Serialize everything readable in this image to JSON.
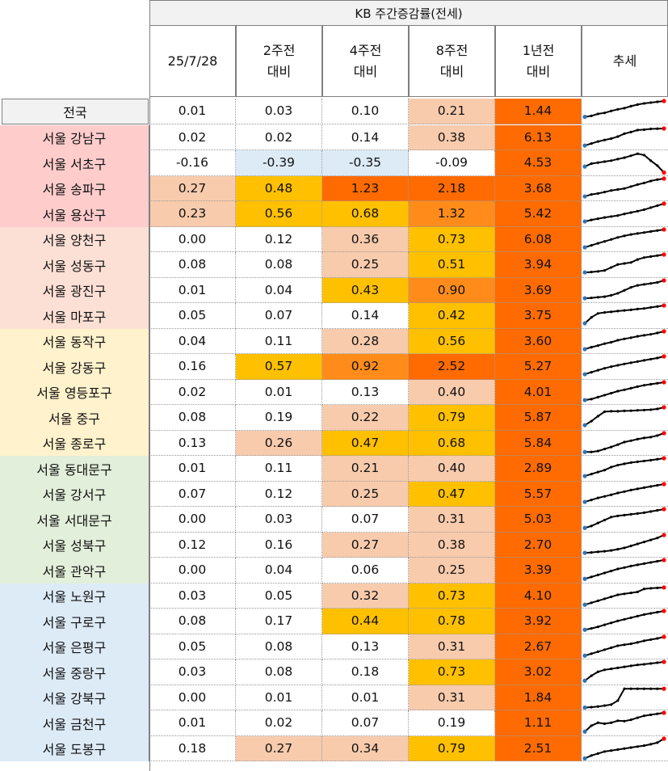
{
  "title": "KB 주간증감률(전세)",
  "headers": [
    {
      "l1": "25/7/28",
      "l2": ""
    },
    {
      "l1": "2주전",
      "l2": "대비"
    },
    {
      "l1": "4주전",
      "l2": "대비"
    },
    {
      "l1": "8주전",
      "l2": "대비"
    },
    {
      "l1": "1년전",
      "l2": "대비"
    },
    {
      "l1": "추세",
      "l2": ""
    }
  ],
  "colors": {
    "group_pink": "#ffcccc",
    "group_peach": "#fde0d5",
    "group_yellow": "#fff2cc",
    "group_green": "#e2efda",
    "group_blue": "#ddebf7",
    "national": "#f2f2f2",
    "negative": "#ddebf7",
    "light": "#f8cbad",
    "mid": "#ffc000",
    "strong": "#ff8c1a",
    "max": "#ff6b00",
    "white": "#ffffff",
    "line": "#000000",
    "start_marker": "#2e75b6",
    "end_marker": "#ff0000"
  },
  "rows": [
    {
      "name": "전국",
      "group": "national",
      "vals": [
        "0.01",
        "0.03",
        "0.10",
        "0.21",
        "1.44"
      ],
      "fills": [
        "white",
        "white",
        "white",
        "light",
        "max"
      ],
      "trend": [
        0.2,
        0.25,
        0.35,
        0.4,
        0.5,
        0.58,
        0.64,
        0.74,
        0.82,
        0.88,
        0.92,
        0.96,
        1.0
      ]
    },
    {
      "name": "서울 강남구",
      "group": "pink",
      "vals": [
        "0.02",
        "0.02",
        "0.14",
        "0.38",
        "6.13"
      ],
      "fills": [
        "white",
        "white",
        "white",
        "light",
        "max"
      ],
      "trend": [
        0.1,
        0.2,
        0.3,
        0.38,
        0.45,
        0.55,
        0.7,
        0.78,
        0.88,
        0.9,
        0.94,
        0.95,
        0.96
      ]
    },
    {
      "name": "서울 서초구",
      "group": "pink",
      "vals": [
        "-0.16",
        "-0.39",
        "-0.35",
        "-0.09",
        "4.53"
      ],
      "fills": [
        "white",
        "negative",
        "negative",
        "white",
        "max"
      ],
      "trend": [
        0.3,
        0.45,
        0.5,
        0.55,
        0.6,
        0.68,
        0.75,
        0.85,
        0.95,
        0.88,
        0.6,
        0.35,
        0.0
      ]
    },
    {
      "name": "서울 송파구",
      "group": "pink",
      "vals": [
        "0.27",
        "0.48",
        "1.23",
        "2.18",
        "3.68"
      ],
      "fills": [
        "light",
        "mid",
        "max",
        "max",
        "max"
      ],
      "trend": [
        0.1,
        0.2,
        0.25,
        0.32,
        0.4,
        0.45,
        0.5,
        0.6,
        0.7,
        0.78,
        0.88,
        0.95,
        1.0
      ]
    },
    {
      "name": "서울 용산구",
      "group": "pink",
      "vals": [
        "0.23",
        "0.56",
        "0.68",
        "1.32",
        "5.42"
      ],
      "fills": [
        "light",
        "mid",
        "mid",
        "strong",
        "max"
      ],
      "trend": [
        0.1,
        0.18,
        0.24,
        0.3,
        0.35,
        0.4,
        0.48,
        0.55,
        0.62,
        0.7,
        0.8,
        0.9,
        1.0
      ]
    },
    {
      "name": "서울 양천구",
      "group": "peach",
      "vals": [
        "0.00",
        "0.12",
        "0.36",
        "0.73",
        "6.08"
      ],
      "fills": [
        "white",
        "white",
        "light",
        "mid",
        "max"
      ],
      "trend": [
        0.1,
        0.2,
        0.3,
        0.4,
        0.5,
        0.6,
        0.68,
        0.75,
        0.8,
        0.85,
        0.9,
        0.95,
        1.0
      ]
    },
    {
      "name": "서울 성동구",
      "group": "peach",
      "vals": [
        "0.08",
        "0.08",
        "0.25",
        "0.51",
        "3.94"
      ],
      "fills": [
        "white",
        "white",
        "light",
        "mid",
        "max"
      ],
      "trend": [
        0.1,
        0.12,
        0.15,
        0.2,
        0.35,
        0.5,
        0.55,
        0.6,
        0.75,
        0.85,
        0.9,
        0.95,
        1.0
      ]
    },
    {
      "name": "서울 광진구",
      "group": "peach",
      "vals": [
        "0.01",
        "0.04",
        "0.43",
        "0.90",
        "3.69"
      ],
      "fills": [
        "white",
        "white",
        "mid",
        "strong",
        "max"
      ],
      "trend": [
        0.1,
        0.12,
        0.15,
        0.18,
        0.25,
        0.35,
        0.5,
        0.65,
        0.75,
        0.8,
        0.85,
        0.9,
        1.0
      ]
    },
    {
      "name": "서울 마포구",
      "group": "peach",
      "vals": [
        "0.05",
        "0.07",
        "0.14",
        "0.42",
        "3.75"
      ],
      "fills": [
        "white",
        "white",
        "white",
        "mid",
        "max"
      ],
      "trend": [
        0.1,
        0.4,
        0.6,
        0.65,
        0.68,
        0.72,
        0.75,
        0.78,
        0.82,
        0.85,
        0.9,
        0.95,
        1.0
      ]
    },
    {
      "name": "서울 동작구",
      "group": "yellow",
      "vals": [
        "0.04",
        "0.11",
        "0.28",
        "0.56",
        "3.60"
      ],
      "fills": [
        "white",
        "white",
        "light",
        "mid",
        "max"
      ],
      "trend": [
        0.1,
        0.2,
        0.28,
        0.38,
        0.45,
        0.55,
        0.62,
        0.68,
        0.75,
        0.8,
        0.85,
        0.92,
        1.0
      ]
    },
    {
      "name": "서울 강동구",
      "group": "yellow",
      "vals": [
        "0.16",
        "0.57",
        "0.92",
        "2.52",
        "5.27"
      ],
      "fills": [
        "white",
        "mid",
        "strong",
        "max",
        "max"
      ],
      "trend": [
        0.1,
        0.2,
        0.3,
        0.4,
        0.48,
        0.55,
        0.62,
        0.68,
        0.74,
        0.8,
        0.86,
        0.92,
        1.0
      ]
    },
    {
      "name": "서울 영등포구",
      "group": "yellow",
      "vals": [
        "0.02",
        "0.01",
        "0.13",
        "0.40",
        "4.01"
      ],
      "fills": [
        "white",
        "white",
        "white",
        "light",
        "max"
      ],
      "trend": [
        0.1,
        0.15,
        0.25,
        0.35,
        0.45,
        0.55,
        0.62,
        0.7,
        0.78,
        0.85,
        0.9,
        0.95,
        1.0
      ]
    },
    {
      "name": "서울 중구",
      "group": "yellow",
      "vals": [
        "0.08",
        "0.19",
        "0.22",
        "0.79",
        "5.87"
      ],
      "fills": [
        "white",
        "white",
        "light",
        "mid",
        "max"
      ],
      "trend": [
        0.1,
        0.3,
        0.55,
        0.78,
        0.8,
        0.8,
        0.82,
        0.83,
        0.85,
        0.86,
        0.88,
        0.92,
        1.0
      ]
    },
    {
      "name": "서울 종로구",
      "group": "yellow",
      "vals": [
        "0.13",
        "0.26",
        "0.47",
        "0.68",
        "5.84"
      ],
      "fills": [
        "white",
        "light",
        "mid",
        "mid",
        "max"
      ],
      "trend": [
        0.05,
        0.05,
        0.1,
        0.2,
        0.3,
        0.42,
        0.55,
        0.62,
        0.7,
        0.76,
        0.8,
        0.88,
        1.0
      ]
    },
    {
      "name": "서울 동대문구",
      "group": "green",
      "vals": [
        "0.01",
        "0.11",
        "0.21",
        "0.40",
        "2.89"
      ],
      "fills": [
        "white",
        "white",
        "light",
        "light",
        "max"
      ],
      "trend": [
        0.1,
        0.2,
        0.3,
        0.4,
        0.55,
        0.65,
        0.72,
        0.78,
        0.82,
        0.86,
        0.9,
        0.95,
        1.0
      ]
    },
    {
      "name": "서울 강서구",
      "group": "green",
      "vals": [
        "0.07",
        "0.12",
        "0.25",
        "0.47",
        "5.57"
      ],
      "fills": [
        "white",
        "white",
        "light",
        "mid",
        "max"
      ],
      "trend": [
        0.1,
        0.2,
        0.3,
        0.38,
        0.46,
        0.55,
        0.62,
        0.7,
        0.76,
        0.82,
        0.88,
        0.94,
        1.0
      ]
    },
    {
      "name": "서울 서대문구",
      "group": "green",
      "vals": [
        "0.00",
        "0.03",
        "0.07",
        "0.31",
        "5.03"
      ],
      "fills": [
        "white",
        "white",
        "white",
        "light",
        "max"
      ],
      "trend": [
        0.05,
        0.15,
        0.3,
        0.45,
        0.6,
        0.66,
        0.7,
        0.74,
        0.78,
        0.82,
        0.88,
        0.94,
        1.0
      ]
    },
    {
      "name": "서울 성북구",
      "group": "green",
      "vals": [
        "0.12",
        "0.16",
        "0.27",
        "0.38",
        "2.70"
      ],
      "fills": [
        "white",
        "white",
        "light",
        "light",
        "max"
      ],
      "trend": [
        0.1,
        0.12,
        0.15,
        0.18,
        0.22,
        0.28,
        0.35,
        0.45,
        0.55,
        0.65,
        0.75,
        0.85,
        1.0
      ]
    },
    {
      "name": "서울 관악구",
      "group": "green",
      "vals": [
        "0.00",
        "0.04",
        "0.06",
        "0.25",
        "3.39"
      ],
      "fills": [
        "white",
        "white",
        "white",
        "light",
        "max"
      ],
      "trend": [
        0.05,
        0.15,
        0.25,
        0.35,
        0.45,
        0.55,
        0.62,
        0.7,
        0.76,
        0.82,
        0.88,
        0.94,
        1.0
      ]
    },
    {
      "name": "서울 노원구",
      "group": "blue",
      "vals": [
        "0.03",
        "0.05",
        "0.32",
        "0.73",
        "4.10"
      ],
      "fills": [
        "white",
        "white",
        "light",
        "mid",
        "max"
      ],
      "trend": [
        0.05,
        0.15,
        0.25,
        0.35,
        0.45,
        0.55,
        0.6,
        0.65,
        0.7,
        0.85,
        0.88,
        0.9,
        0.92
      ]
    },
    {
      "name": "서울 구로구",
      "group": "blue",
      "vals": [
        "0.08",
        "0.17",
        "0.44",
        "0.78",
        "3.92"
      ],
      "fills": [
        "white",
        "white",
        "mid",
        "mid",
        "max"
      ],
      "trend": [
        0.05,
        0.12,
        0.2,
        0.3,
        0.4,
        0.5,
        0.58,
        0.66,
        0.74,
        0.82,
        0.88,
        0.94,
        1.0
      ]
    },
    {
      "name": "서울 은평구",
      "group": "blue",
      "vals": [
        "0.05",
        "0.08",
        "0.13",
        "0.31",
        "2.67"
      ],
      "fills": [
        "white",
        "white",
        "white",
        "light",
        "max"
      ],
      "trend": [
        0.05,
        0.15,
        0.25,
        0.35,
        0.45,
        0.55,
        0.6,
        0.65,
        0.72,
        0.8,
        0.86,
        0.92,
        1.0
      ]
    },
    {
      "name": "서울 중랑구",
      "group": "blue",
      "vals": [
        "0.03",
        "0.08",
        "0.18",
        "0.73",
        "3.02"
      ],
      "fills": [
        "white",
        "white",
        "white",
        "mid",
        "max"
      ],
      "trend": [
        0.05,
        0.3,
        0.5,
        0.6,
        0.65,
        0.7,
        0.75,
        0.8,
        0.85,
        0.88,
        0.92,
        0.96,
        1.0
      ]
    },
    {
      "name": "서울 강북구",
      "group": "blue",
      "vals": [
        "0.00",
        "0.01",
        "0.01",
        "0.31",
        "1.84"
      ],
      "fills": [
        "white",
        "white",
        "white",
        "light",
        "max"
      ],
      "trend": [
        0.0,
        0.02,
        0.05,
        0.1,
        0.15,
        0.35,
        0.95,
        0.95,
        0.95,
        0.95,
        0.95,
        0.95,
        0.95
      ]
    },
    {
      "name": "서울 금천구",
      "group": "blue",
      "vals": [
        "0.01",
        "0.02",
        "0.07",
        "0.19",
        "1.11"
      ],
      "fills": [
        "white",
        "white",
        "white",
        "white",
        "max"
      ],
      "trend": [
        0.05,
        0.35,
        0.5,
        0.45,
        0.5,
        0.6,
        0.58,
        0.65,
        0.75,
        0.85,
        0.9,
        0.95,
        1.0
      ]
    },
    {
      "name": "서울 도봉구",
      "group": "blue",
      "vals": [
        "0.18",
        "0.27",
        "0.34",
        "0.79",
        "2.51"
      ],
      "fills": [
        "white",
        "light",
        "light",
        "mid",
        "max"
      ],
      "trend": [
        0.0,
        0.15,
        0.25,
        0.35,
        0.4,
        0.45,
        0.5,
        0.55,
        0.6,
        0.65,
        0.72,
        0.8,
        1.0
      ]
    }
  ]
}
